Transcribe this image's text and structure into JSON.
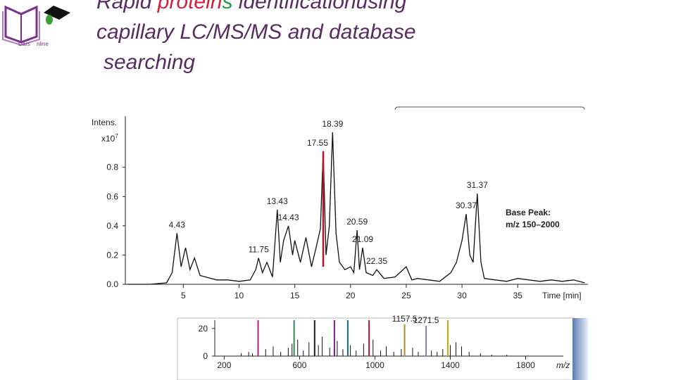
{
  "slide": {
    "logo": [
      "Dars",
      "nline"
    ],
    "title_lines": [
      [
        {
          "text": "Rapid ",
          "color": "#5a2a63"
        },
        {
          "text": "protein",
          "color": "#d61f3c"
        },
        {
          "text": "s",
          "color": "#1f9a3c"
        },
        {
          "text": " identificationusing",
          "color": "#5a2a63"
        }
      ],
      [
        {
          "text": "capillary  LC/MS/MS and database",
          "color": "#5a2a63"
        }
      ],
      [
        {
          "text": " searching",
          "color": "#5a2a63"
        }
      ]
    ]
  },
  "chart_data": [
    {
      "type": "line",
      "y_label": "Intens.",
      "y_unit": [
        "x10",
        "7"
      ],
      "x_label": "Time [min]",
      "notes": [
        "Base Peak:",
        "m/z 150–2000"
      ],
      "xlim": [
        -0.2,
        41.3
      ],
      "xticks": [
        5,
        10,
        15,
        20,
        25,
        30,
        35
      ],
      "ylim": [
        0,
        1.15
      ],
      "yticks": [
        {
          "value": 0,
          "label": "0.0"
        },
        0.2,
        0.4,
        0.6,
        0.8
      ],
      "series": [
        {
          "color": "#111111",
          "x": [
            0,
            2,
            3.5,
            4,
            4.43,
            4.8,
            5.2,
            5.6,
            6,
            6.5,
            7,
            8,
            9,
            10,
            11,
            11.5,
            11.75,
            12.1,
            12.5,
            13,
            13.43,
            13.7,
            14,
            14.43,
            14.8,
            15,
            15.5,
            16,
            16.5,
            17,
            17.3,
            17.55,
            17.8,
            18.1,
            18.39,
            18.7,
            19,
            19.5,
            20,
            20.3,
            20.59,
            20.8,
            21.09,
            21.4,
            22,
            22.35,
            23,
            24,
            25,
            25.5,
            26,
            27,
            28,
            29,
            29.5,
            30,
            30.37,
            30.7,
            31,
            31.37,
            31.7,
            32,
            33,
            34,
            35,
            36,
            37,
            38,
            39,
            40,
            41
          ],
          "values": [
            0,
            0,
            0.01,
            0.08,
            0.35,
            0.12,
            0.25,
            0.1,
            0.18,
            0.06,
            0.05,
            0.03,
            0.03,
            0.02,
            0.03,
            0.1,
            0.18,
            0.08,
            0.15,
            0.05,
            0.51,
            0.15,
            0.3,
            0.4,
            0.2,
            0.3,
            0.15,
            0.32,
            0.12,
            0.28,
            0.38,
            0.91,
            0.2,
            0.4,
            1.04,
            0.35,
            0.15,
            0.1,
            0.12,
            0.08,
            0.37,
            0.1,
            0.25,
            0.08,
            0.06,
            0.1,
            0.04,
            0.05,
            0.12,
            0.03,
            0.04,
            0.03,
            0.02,
            0.08,
            0.15,
            0.3,
            0.48,
            0.2,
            0.15,
            0.62,
            0.15,
            0.04,
            0.03,
            0.02,
            0.04,
            0.03,
            0.02,
            0.03,
            0.02,
            0.03,
            0.01
          ]
        }
      ],
      "annotations": [
        {
          "x": 4.43,
          "y": 0.35
        },
        {
          "x": 11.75,
          "y": 0.18
        },
        {
          "x": 13.43,
          "y": 0.51
        },
        {
          "x": 14.43,
          "y": 0.4
        },
        {
          "x": 17.55,
          "y": 0.91,
          "color": "#b3132b"
        },
        {
          "x": 18.39,
          "y": 1.04
        },
        {
          "x": 20.59,
          "y": 0.37
        },
        {
          "x": 21.09,
          "y": 0.25
        },
        {
          "x": 22.35,
          "y": 0.1
        },
        {
          "x": 30.37,
          "y": 0.48
        },
        {
          "x": 31.37,
          "y": 0.62
        }
      ]
    },
    {
      "type": "stick",
      "x_label": "m/z",
      "xlim": [
        150,
        2000
      ],
      "xticks": [
        200,
        600,
        1000,
        1400,
        1800
      ],
      "ylim": [
        0,
        26
      ],
      "yticks": [
        0,
        20
      ],
      "series": [
        {
          "color": "#111111",
          "x": [
            290,
            330,
            350,
            420,
            460,
            500,
            540,
            560,
            590,
            620,
            650,
            700,
            720,
            760,
            800,
            830,
            870,
            900,
            940,
            990,
            1030,
            1060,
            1100,
            1140,
            1200,
            1230,
            1300,
            1330,
            1360,
            1400,
            1430,
            1460,
            1500,
            1560,
            1620,
            1700
          ],
          "values": [
            2,
            3,
            2,
            5,
            7,
            3,
            6,
            9,
            12,
            4,
            10,
            8,
            14,
            6,
            11,
            5,
            8,
            4,
            9,
            12,
            4,
            7,
            3,
            5,
            6,
            3,
            4,
            3,
            5,
            8,
            10,
            7,
            3,
            2,
            1,
            1
          ]
        },
        {
          "x": [
            380,
            571,
            680,
            785,
            856,
            969,
            1387
          ],
          "values": [
            26,
            26,
            26,
            26,
            26,
            26,
            26
          ],
          "colors": [
            "#c2187a",
            "#2e8b57",
            "#1a1a1a",
            "#7a1f8c",
            "#0f6e8a",
            "#b3132b",
            "#c9a800"
          ]
        },
        {
          "x": [
            1157.5,
            1271.5
          ],
          "values": [
            23,
            22
          ],
          "colors": [
            "#b08a2e",
            "#8a7aa0"
          ]
        }
      ],
      "annotations": [
        {
          "x": 1157.5,
          "y": 23
        },
        {
          "x": 1271.5,
          "y": 22
        }
      ]
    }
  ]
}
